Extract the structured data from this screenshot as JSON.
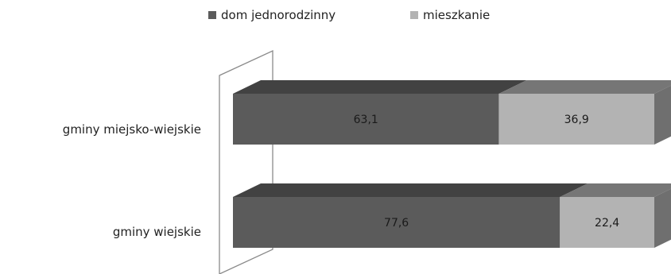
{
  "chart_data": {
    "type": "bar",
    "orientation": "horizontal",
    "stacked": true,
    "percent_stacked": true,
    "three_d": true,
    "categories": [
      "gminy miejsko-wiejskie",
      "gminy wiejskie"
    ],
    "series": [
      {
        "name": "dom jednorodzinny",
        "values": [
          63.1,
          77.6
        ],
        "labels": [
          "63,1",
          "77,6"
        ],
        "color": "#5b5b5b"
      },
      {
        "name": "mieszkanie",
        "values": [
          36.9,
          22.4
        ],
        "labels": [
          "36,9",
          "22,4"
        ],
        "color": "#b3b3b3"
      }
    ],
    "xlim": [
      0,
      100
    ],
    "grid": false,
    "legend_position": "top"
  }
}
